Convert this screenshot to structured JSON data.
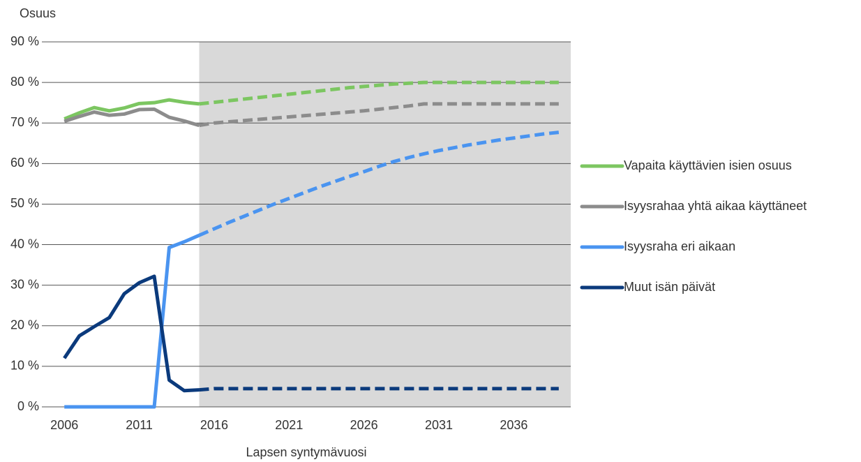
{
  "chart_data": {
    "type": "line",
    "y_label": "Osuus",
    "x_label": "Lapsen syntymävuosi",
    "x": [
      2006,
      2007,
      2008,
      2009,
      2010,
      2011,
      2012,
      2013,
      2014,
      2015,
      2016,
      2017,
      2018,
      2019,
      2020,
      2021,
      2022,
      2023,
      2024,
      2025,
      2026,
      2027,
      2028,
      2029,
      2030,
      2031,
      2032,
      2033,
      2034,
      2035,
      2036,
      2037,
      2038,
      2039
    ],
    "xlim": [
      2004.5,
      2039.8
    ],
    "xticks": [
      2006,
      2011,
      2016,
      2021,
      2026,
      2031,
      2036
    ],
    "ylim": [
      0,
      90
    ],
    "yticks": [
      {
        "value": 0,
        "label": "0 %"
      },
      {
        "value": 10,
        "label": "10 %"
      },
      {
        "value": 20,
        "label": "20 %"
      },
      {
        "value": 30,
        "label": "30 %"
      },
      {
        "value": 40,
        "label": "40 %"
      },
      {
        "value": 50,
        "label": "50 %"
      },
      {
        "value": 60,
        "label": "60 %"
      },
      {
        "value": 70,
        "label": "70 %"
      },
      {
        "value": 80,
        "label": "80 %"
      },
      {
        "value": 90,
        "label": "90 %"
      }
    ],
    "grid": true,
    "forecast_start": 2015,
    "series": [
      {
        "name": "Vapaita käyttävien isien osuus",
        "color": "#7cc661",
        "values": [
          71,
          72.5,
          73.8,
          73,
          73.7,
          74.8,
          75,
          75.7,
          75.1,
          74.7,
          75.1,
          75.5,
          75.9,
          76.3,
          76.7,
          77.1,
          77.5,
          77.9,
          78.3,
          78.7,
          79,
          79.3,
          79.6,
          79.8,
          80,
          80,
          80,
          80,
          80,
          80,
          80,
          80,
          80,
          80
        ]
      },
      {
        "name": "Isyysrahaa yhtä aikaa käyttäneet",
        "color": "#8c8c8c",
        "values": [
          70.4,
          71.6,
          72.7,
          71.9,
          72.2,
          73.3,
          73.4,
          71.4,
          70.5,
          69.4,
          70,
          70.3,
          70.6,
          70.9,
          71.2,
          71.5,
          71.8,
          72.1,
          72.4,
          72.7,
          73,
          73.4,
          73.8,
          74.2,
          74.7,
          74.7,
          74.7,
          74.7,
          74.7,
          74.7,
          74.7,
          74.7,
          74.7,
          74.7
        ]
      },
      {
        "name": "Isyysraha eri aikaan",
        "color": "#4a94f0",
        "values": [
          0,
          0,
          0,
          0,
          0,
          0,
          0,
          39.3,
          40.7,
          42.3,
          43.9,
          45.5,
          47,
          48.5,
          50,
          51.4,
          52.8,
          54.2,
          55.5,
          56.8,
          58,
          59.3,
          60.5,
          61.5,
          62.4,
          63.2,
          63.9,
          64.6,
          65.2,
          65.8,
          66.3,
          66.8,
          67.3,
          67.7
        ]
      },
      {
        "name": "Muut isän päivät",
        "color": "#0b3a7c",
        "values": [
          12,
          17.5,
          19.8,
          22,
          27.9,
          30.6,
          32.2,
          6.6,
          4,
          4.2,
          4.5,
          4.5,
          4.5,
          4.5,
          4.5,
          4.5,
          4.5,
          4.5,
          4.5,
          4.5,
          4.5,
          4.5,
          4.5,
          4.5,
          4.5,
          4.5,
          4.5,
          4.5,
          4.5,
          4.5,
          4.5,
          4.5,
          4.5,
          4.5
        ]
      }
    ]
  }
}
